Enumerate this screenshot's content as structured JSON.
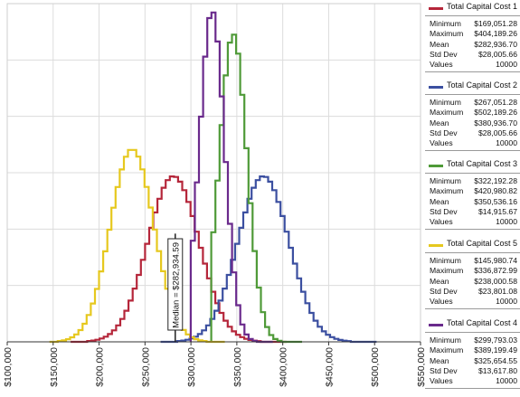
{
  "chart_data": {
    "type": "line",
    "subtype": "step-histogram",
    "xlim": [
      100000,
      550000
    ],
    "x_ticks": [
      "$100,000",
      "$150,000",
      "$200,000",
      "$250,000",
      "$300,000",
      "$350,000",
      "$400,000",
      "$450,000",
      "$500,000",
      "$550,000"
    ],
    "x_tick_values": [
      100000,
      150000,
      200000,
      250000,
      300000,
      350000,
      400000,
      450000,
      500000,
      550000
    ],
    "grid": true,
    "legend_position": "right",
    "annotation": {
      "text": "Median = $282,934.59",
      "x": 282934.59
    },
    "series": [
      {
        "name": "Total Capital Cost 1",
        "color": "#b5263a",
        "stats": {
          "Minimum": "$169,051.28",
          "Maximum": "$404,189.26",
          "Mean": "$282,936.70",
          "Std Dev": "$28,005.66",
          "Values": "10000"
        },
        "peak_x": 281000,
        "peak_height": 0.49,
        "spread": 28000,
        "x_range": [
          169051,
          404189
        ]
      },
      {
        "name": "Total Capital Cost 2",
        "color": "#3b4fa0",
        "stats": {
          "Minimum": "$267,051.28",
          "Maximum": "$502,189.26",
          "Mean": "$380,936.70",
          "Std Dev": "$28,005.66",
          "Values": "10000"
        },
        "peak_x": 379000,
        "peak_height": 0.49,
        "spread": 28000,
        "x_range": [
          267051,
          502189
        ]
      },
      {
        "name": "Total Capital Cost 3",
        "color": "#4f9a38",
        "stats": {
          "Minimum": "$322,192.28",
          "Maximum": "$420,980.82",
          "Mean": "$350,536.16",
          "Std Dev": "$14,915.67",
          "Values": "10000"
        },
        "peak_x": 346000,
        "peak_height": 0.91,
        "spread": 15000,
        "x_range": [
          322192,
          420981
        ]
      },
      {
        "name": "Total Capital Cost 5",
        "color": "#e6c81e",
        "stats": {
          "Minimum": "$145,980.74",
          "Maximum": "$336,872.99",
          "Mean": "$238,000.58",
          "Std Dev": "$23,801.08",
          "Values": "10000"
        },
        "peak_x": 236000,
        "peak_height": 0.57,
        "spread": 23800,
        "x_range": [
          145981,
          336873
        ]
      },
      {
        "name": "Total Capital Cost 4",
        "color": "#6a2a8c",
        "stats": {
          "Minimum": "$299,793.03",
          "Maximum": "$389,199.49",
          "Mean": "$325,654.55",
          "Std Dev": "$13,617.80",
          "Values": "10000"
        },
        "peak_x": 323000,
        "peak_height": 0.98,
        "spread": 13600,
        "x_range": [
          299793,
          389199
        ]
      }
    ]
  }
}
